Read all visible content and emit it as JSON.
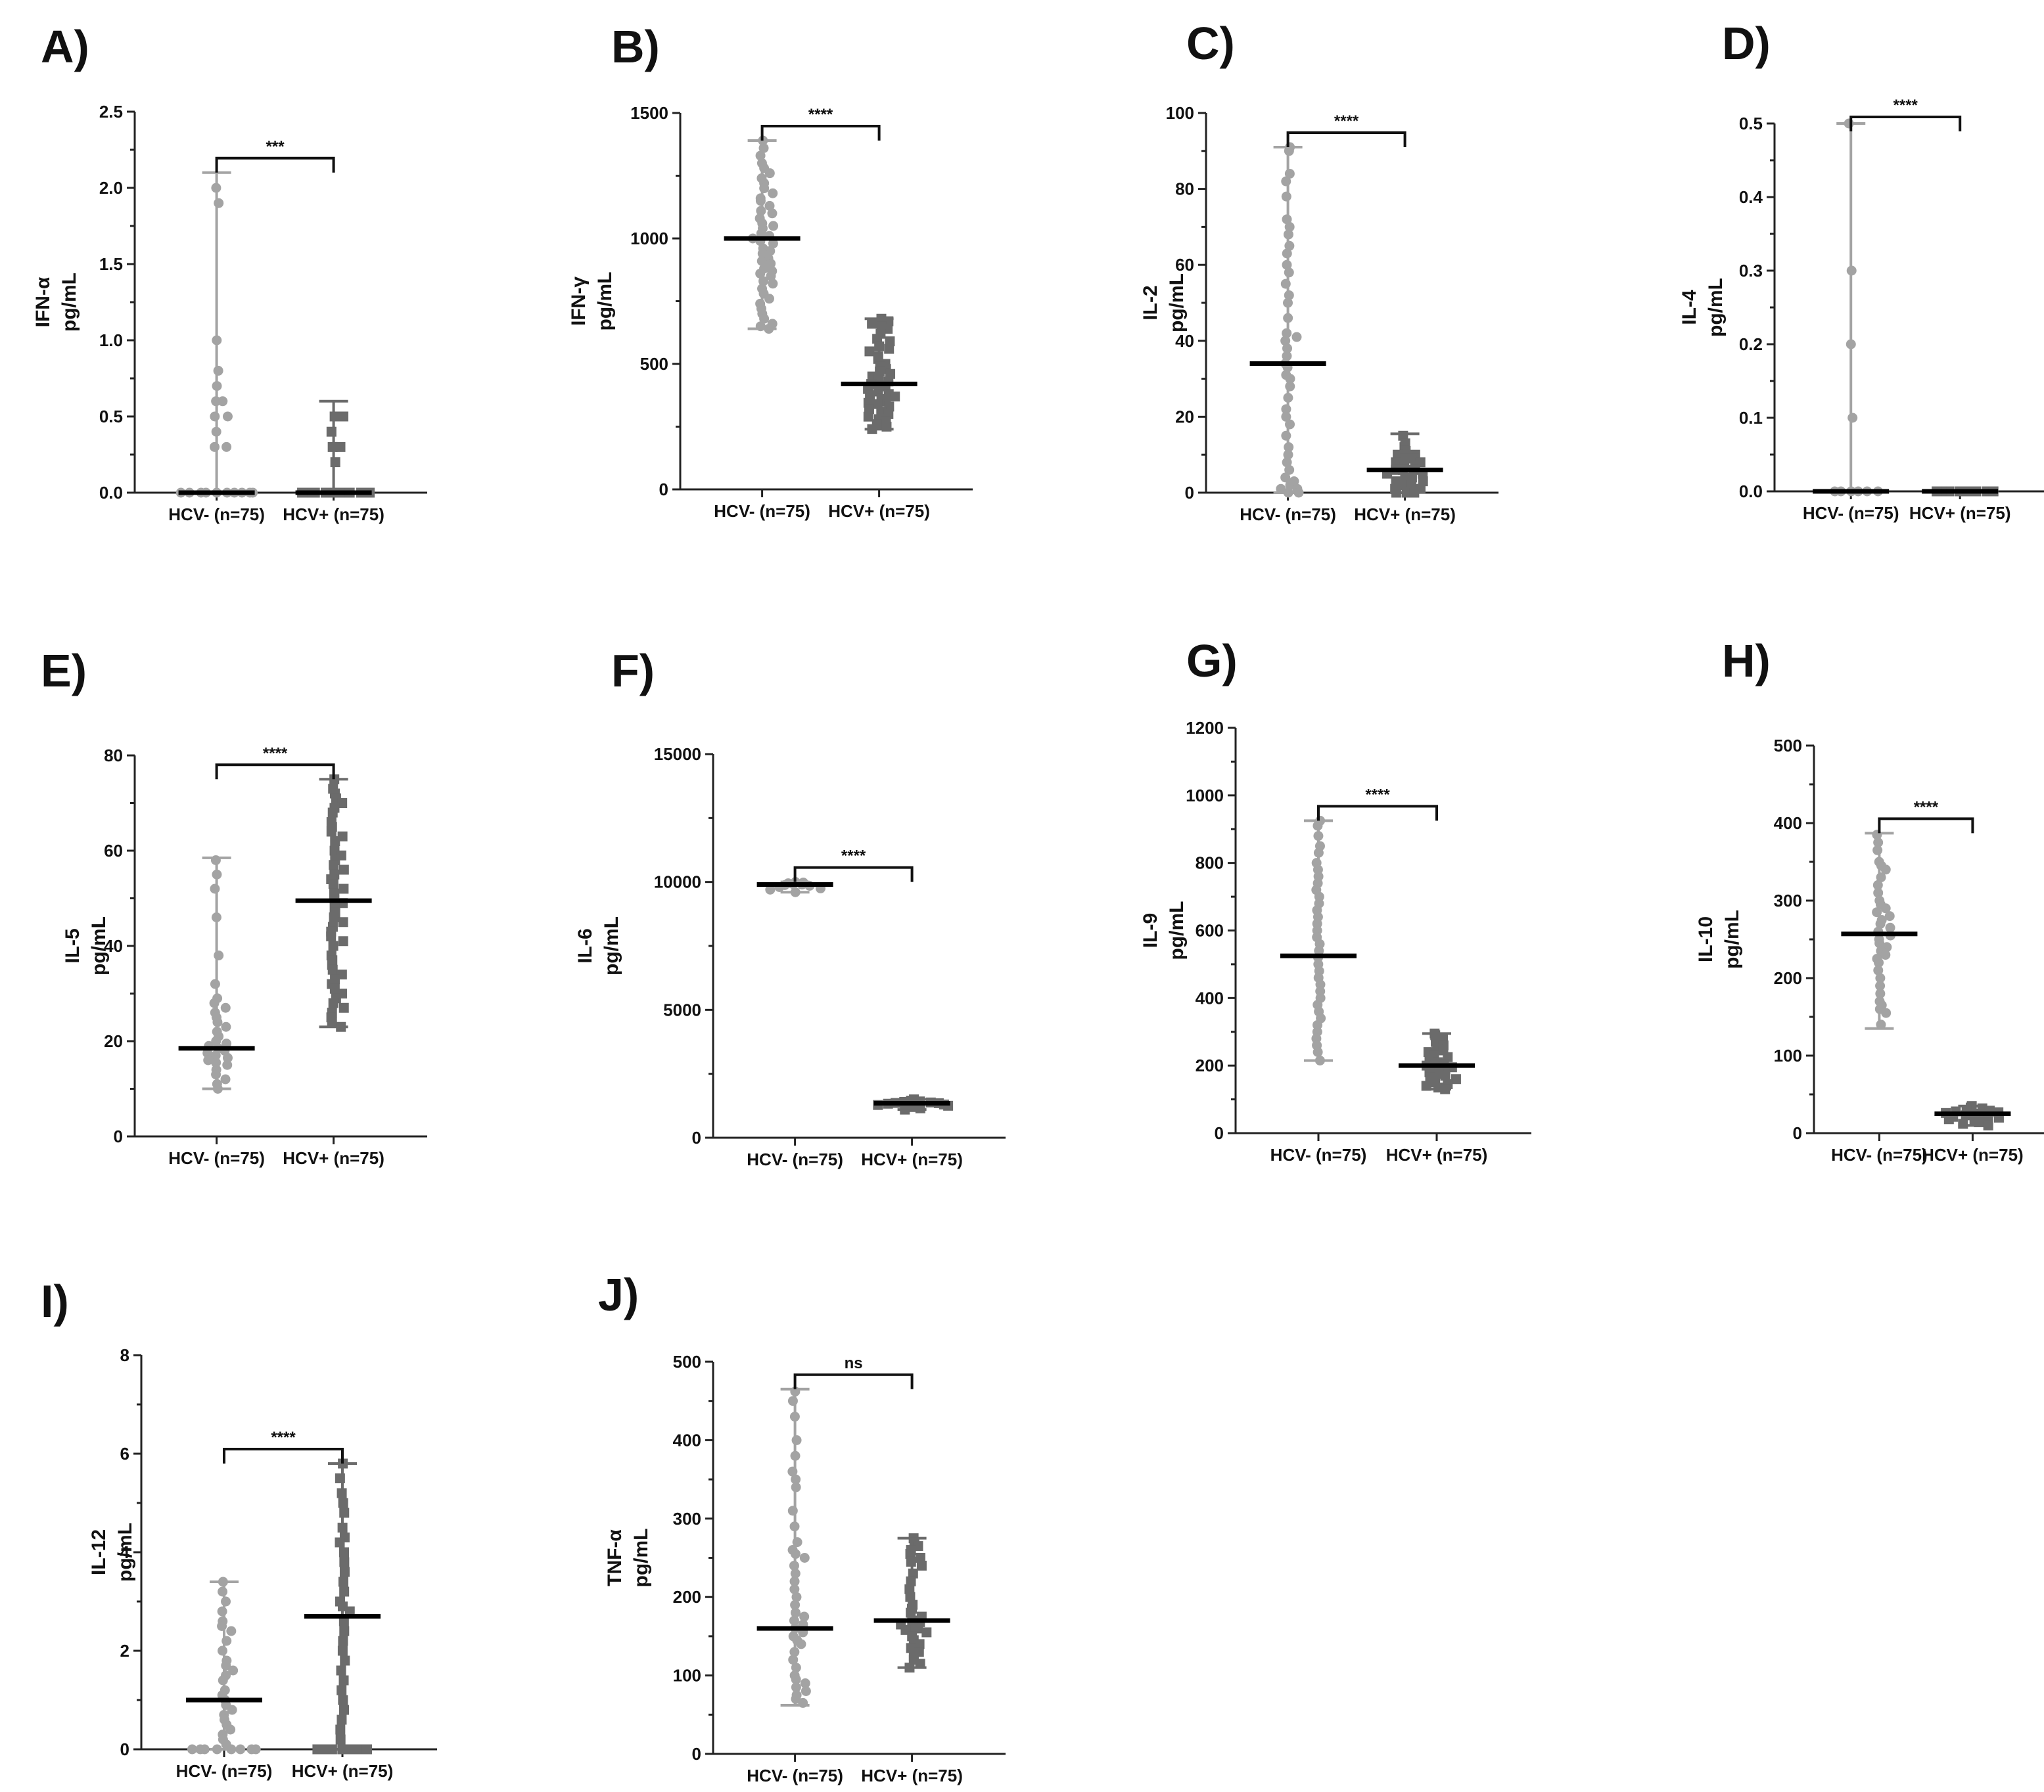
{
  "colors": {
    "hcv_neg": "#a3a3a3",
    "hcv_pos": "#6b6b6b",
    "median": "#000000",
    "axis": "#222222"
  },
  "group_labels": [
    "HCV- (n=75)",
    "HCV+ (n=75)"
  ],
  "chart_data": [
    {
      "type": "scatter",
      "panel": "A)",
      "ylabel": [
        "IFN-α",
        "pg/mL"
      ],
      "ylim": [
        0,
        2.5
      ],
      "yticks": [
        0,
        0.5,
        1.0,
        1.5,
        2.0,
        2.5
      ],
      "tick_labels": [
        "0.0",
        "0.5",
        "1.0",
        "1.5",
        "2.0",
        "2.5"
      ],
      "categories": [
        "HCV- (n=75)",
        "HCV+ (n=75)"
      ],
      "significance": "***",
      "series": [
        {
          "name": "HCV- (n=75)",
          "median": 0,
          "min": 0,
          "max": 2.1,
          "points": [
            2.0,
            1.9,
            1.0,
            0.8,
            0.7,
            0.6,
            0.6,
            0.5,
            0.5,
            0.4,
            0.3,
            0.3,
            0,
            0,
            0,
            0,
            0,
            0,
            0,
            0,
            0,
            0
          ]
        },
        {
          "name": "HCV+ (n=75)",
          "median": 0,
          "min": 0,
          "max": 0.6,
          "points": [
            0.5,
            0.5,
            0.4,
            0.3,
            0.3,
            0.2,
            0,
            0,
            0,
            0,
            0,
            0,
            0,
            0,
            0,
            0
          ]
        }
      ]
    },
    {
      "type": "scatter",
      "panel": "B)",
      "ylabel": [
        "IFN-γ",
        "pg/mL"
      ],
      "ylim": [
        0,
        1500
      ],
      "yticks": [
        0,
        500,
        1000,
        1500
      ],
      "tick_labels": [
        "0",
        "500",
        "1000",
        "1500"
      ],
      "categories": [
        "HCV- (n=75)",
        "HCV+ (n=75)"
      ],
      "significance": "****",
      "series": [
        {
          "name": "HCV- (n=75)",
          "median": 1000,
          "min": 640,
          "max": 1390,
          "points": [
            1390,
            1360,
            1330,
            1300,
            1280,
            1260,
            1240,
            1220,
            1200,
            1180,
            1160,
            1150,
            1130,
            1110,
            1100,
            1080,
            1060,
            1050,
            1040,
            1020,
            1010,
            1000,
            990,
            980,
            960,
            950,
            940,
            920,
            910,
            900,
            880,
            870,
            860,
            850,
            830,
            820,
            800,
            780,
            760,
            740,
            720,
            700,
            680,
            660,
            650,
            640
          ]
        },
        {
          "name": "HCV+ (n=75)",
          "median": 420,
          "min": 240,
          "max": 680,
          "points": [
            680,
            670,
            660,
            650,
            640,
            620,
            600,
            590,
            570,
            560,
            550,
            530,
            520,
            500,
            490,
            480,
            470,
            460,
            450,
            440,
            430,
            420,
            415,
            410,
            400,
            390,
            380,
            375,
            370,
            360,
            350,
            345,
            340,
            330,
            320,
            310,
            300,
            290,
            280,
            270,
            260,
            250,
            240
          ]
        }
      ]
    },
    {
      "type": "scatter",
      "panel": "C)",
      "ylabel": [
        "IL-2",
        "pg/mL"
      ],
      "ylim": [
        0,
        100
      ],
      "yticks": [
        0,
        20,
        40,
        60,
        80,
        100
      ],
      "tick_labels": [
        "0",
        "20",
        "40",
        "60",
        "80",
        "100"
      ],
      "categories": [
        "HCV- (n=75)",
        "HCV+ (n=75)"
      ],
      "significance": "****",
      "series": [
        {
          "name": "HCV- (n=75)",
          "median": 34,
          "min": 0,
          "max": 91,
          "points": [
            91,
            90,
            84,
            82,
            78,
            72,
            70,
            68,
            65,
            63,
            60,
            58,
            55,
            52,
            50,
            46,
            42,
            41,
            40,
            38,
            36,
            34,
            33,
            31,
            30,
            28,
            25,
            22,
            20,
            18,
            15,
            12,
            10,
            8,
            6,
            4,
            3,
            2,
            1,
            1,
            0,
            0
          ]
        },
        {
          "name": "HCV+ (n=75)",
          "median": 6,
          "min": 0,
          "max": 15.5,
          "points": [
            15,
            13,
            12,
            11,
            10,
            10,
            9,
            9,
            8,
            8,
            7,
            7,
            6,
            6,
            6,
            5,
            5,
            4,
            4,
            3,
            3,
            2,
            2,
            1,
            1,
            0,
            0,
            0
          ]
        }
      ]
    },
    {
      "type": "scatter",
      "panel": "D)",
      "ylabel": [
        "IL-4",
        "pg/mL"
      ],
      "ylim": [
        0,
        0.5
      ],
      "yticks": [
        0,
        0.1,
        0.2,
        0.3,
        0.4,
        0.5
      ],
      "tick_labels": [
        "0.0",
        "0.1",
        "0.2",
        "0.3",
        "0.4",
        "0.5"
      ],
      "categories": [
        "HCV- (n=75)",
        "HCV+ (n=75)"
      ],
      "significance": "****",
      "series": [
        {
          "name": "HCV- (n=75)",
          "median": 0,
          "min": 0,
          "max": 0.5,
          "points": [
            0.5,
            0.3,
            0.2,
            0.1,
            0,
            0,
            0,
            0,
            0,
            0
          ]
        },
        {
          "name": "HCV+ (n=75)",
          "median": 0,
          "min": 0,
          "max": 0,
          "points": [
            0,
            0,
            0,
            0,
            0,
            0,
            0,
            0
          ]
        }
      ]
    },
    {
      "type": "scatter",
      "panel": "E)",
      "ylabel": [
        "IL-5",
        "pg/mL"
      ],
      "ylim": [
        0,
        80
      ],
      "yticks": [
        0,
        20,
        40,
        60,
        80
      ],
      "tick_labels": [
        "0",
        "20",
        "40",
        "60",
        "80"
      ],
      "categories": [
        "HCV- (n=75)",
        "HCV+ (n=75)"
      ],
      "significance": "****",
      "series": [
        {
          "name": "HCV- (n=75)",
          "median": 18.5,
          "min": 10,
          "max": 58.5,
          "points": [
            58,
            55,
            52,
            46,
            38,
            32,
            29,
            28,
            27,
            26,
            25,
            24,
            23,
            22,
            21,
            20,
            19.5,
            19,
            18.5,
            18,
            17.5,
            17,
            16.5,
            16,
            15.5,
            15,
            14,
            13,
            12,
            11,
            10
          ]
        },
        {
          "name": "HCV+ (n=75)",
          "median": 49.5,
          "min": 23,
          "max": 75,
          "points": [
            75,
            73,
            72,
            71,
            70,
            69,
            68,
            66,
            65,
            64,
            63,
            62,
            60,
            59,
            58,
            57,
            56,
            55,
            54,
            53,
            52,
            51,
            50,
            49,
            48,
            47,
            46,
            45,
            44,
            43,
            42,
            41,
            40,
            38,
            37,
            36,
            35,
            34,
            33,
            32,
            31,
            30,
            29,
            28,
            27,
            26,
            25,
            24,
            23
          ]
        }
      ]
    },
    {
      "type": "scatter",
      "panel": "F)",
      "ylabel": [
        "IL-6",
        "pg/mL"
      ],
      "ylim": [
        0,
        15000
      ],
      "yticks": [
        0,
        5000,
        10000,
        15000
      ],
      "tick_labels": [
        "0",
        "5000",
        "10000",
        "15000"
      ],
      "categories": [
        "HCV- (n=75)",
        "HCV+ (n=75)"
      ],
      "significance": "****",
      "series": [
        {
          "name": "HCV- (n=75)",
          "median": 9900,
          "min": 9600,
          "max": 10000,
          "points": [
            10000,
            9980,
            9950,
            9920,
            9900,
            9880,
            9850,
            9800,
            9750,
            9700,
            9600
          ]
        },
        {
          "name": "HCV+ (n=75)",
          "median": 1350,
          "min": 1100,
          "max": 1500,
          "points": [
            1500,
            1450,
            1420,
            1400,
            1380,
            1360,
            1350,
            1330,
            1300,
            1280,
            1250,
            1200,
            1150,
            1100
          ]
        }
      ]
    },
    {
      "type": "scatter",
      "panel": "G)",
      "ylabel": [
        "IL-9",
        "pg/mL"
      ],
      "ylim": [
        0,
        1200
      ],
      "yticks": [
        0,
        200,
        400,
        600,
        800,
        1000,
        1200
      ],
      "tick_labels": [
        "0",
        "200",
        "400",
        "600",
        "800",
        "1000",
        "1200"
      ],
      "categories": [
        "HCV- (n=75)",
        "HCV+ (n=75)"
      ],
      "significance": "****",
      "series": [
        {
          "name": "HCV- (n=75)",
          "median": 525,
          "min": 215,
          "max": 925,
          "points": [
            925,
            910,
            880,
            850,
            830,
            800,
            780,
            760,
            740,
            720,
            700,
            680,
            660,
            640,
            620,
            600,
            580,
            560,
            540,
            520,
            500,
            480,
            460,
            440,
            420,
            400,
            380,
            360,
            340,
            320,
            300,
            280,
            260,
            240,
            215
          ]
        },
        {
          "name": "HCV+ (n=75)",
          "median": 200,
          "min": 130,
          "max": 295,
          "points": [
            295,
            290,
            280,
            270,
            260,
            250,
            245,
            240,
            230,
            225,
            220,
            210,
            205,
            200,
            195,
            190,
            185,
            180,
            175,
            170,
            165,
            160,
            150,
            145,
            140,
            135,
            130
          ]
        }
      ]
    },
    {
      "type": "scatter",
      "panel": "H)",
      "ylabel": [
        "IL-10",
        "pg/mL"
      ],
      "ylim": [
        0,
        500
      ],
      "yticks": [
        0,
        100,
        200,
        300,
        400,
        500
      ],
      "tick_labels": [
        "0",
        "100",
        "200",
        "300",
        "400",
        "500"
      ],
      "categories": [
        "HCV- (n=75)",
        "HCV+ (n=75)"
      ],
      "significance": "****",
      "series": [
        {
          "name": "HCV- (n=75)",
          "median": 257,
          "min": 135,
          "max": 387,
          "points": [
            385,
            375,
            365,
            350,
            345,
            340,
            330,
            320,
            310,
            300,
            295,
            290,
            285,
            280,
            275,
            270,
            265,
            260,
            255,
            250,
            245,
            240,
            235,
            230,
            225,
            220,
            210,
            200,
            190,
            180,
            170,
            165,
            160,
            155,
            140
          ]
        },
        {
          "name": "HCV+ (n=75)",
          "median": 25,
          "min": 10,
          "max": 35,
          "points": [
            35,
            33,
            32,
            30,
            29,
            28,
            27,
            26,
            25,
            24,
            23,
            22,
            21,
            20,
            18,
            16,
            14,
            12,
            10
          ]
        }
      ]
    },
    {
      "type": "scatter",
      "panel": "I)",
      "ylabel": [
        "IL-12",
        "pg/mL"
      ],
      "ylim": [
        0,
        8
      ],
      "yticks": [
        0,
        2,
        4,
        6,
        8
      ],
      "tick_labels": [
        "0",
        "2",
        "4",
        "6",
        "8"
      ],
      "categories": [
        "HCV- (n=75)",
        "HCV+ (n=75)"
      ],
      "significance": "****",
      "series": [
        {
          "name": "HCV- (n=75)",
          "median": 1.0,
          "min": 0,
          "max": 3.4,
          "points": [
            3.4,
            3.2,
            3.0,
            2.8,
            2.6,
            2.5,
            2.4,
            2.2,
            2.0,
            1.8,
            1.7,
            1.6,
            1.5,
            1.4,
            1.2,
            1.1,
            1.0,
            0.9,
            0.8,
            0.7,
            0.6,
            0.5,
            0.4,
            0.3,
            0.2,
            0.1,
            0,
            0,
            0,
            0,
            0,
            0,
            0,
            0
          ]
        },
        {
          "name": "HCV+ (n=75)",
          "median": 2.7,
          "min": 0,
          "max": 5.8,
          "points": [
            5.8,
            5.5,
            5.2,
            5.0,
            4.8,
            4.5,
            4.3,
            4.2,
            4.0,
            3.8,
            3.6,
            3.4,
            3.2,
            3.0,
            2.9,
            2.8,
            2.6,
            2.4,
            2.2,
            2.0,
            1.8,
            1.6,
            1.4,
            1.2,
            1.0,
            0.8,
            0.6,
            0.4,
            0.2,
            0,
            0,
            0,
            0,
            0,
            0,
            0
          ]
        }
      ]
    },
    {
      "type": "scatter",
      "panel": "J)",
      "ylabel": [
        "TNF-α",
        "pg/mL"
      ],
      "ylim": [
        0,
        500
      ],
      "yticks": [
        0,
        100,
        200,
        300,
        400,
        500
      ],
      "tick_labels": [
        "0",
        "100",
        "200",
        "300",
        "400",
        "500"
      ],
      "categories": [
        "HCV- (n=75)",
        "HCV+ (n=75)"
      ],
      "significance": "ns",
      "series": [
        {
          "name": "HCV- (n=75)",
          "median": 160,
          "min": 62,
          "max": 465,
          "points": [
            462,
            450,
            430,
            400,
            380,
            360,
            350,
            340,
            310,
            290,
            270,
            260,
            255,
            250,
            240,
            230,
            220,
            210,
            200,
            190,
            180,
            175,
            170,
            165,
            160,
            155,
            150,
            145,
            140,
            130,
            120,
            110,
            100,
            95,
            90,
            85,
            80,
            75,
            70,
            65
          ]
        },
        {
          "name": "HCV+ (n=75)",
          "median": 170,
          "min": 110,
          "max": 275,
          "points": [
            275,
            270,
            265,
            260,
            255,
            250,
            245,
            240,
            230,
            220,
            210,
            200,
            190,
            185,
            180,
            175,
            170,
            168,
            165,
            162,
            160,
            158,
            155,
            150,
            145,
            140,
            135,
            130,
            125,
            120,
            115,
            110
          ]
        }
      ]
    }
  ]
}
